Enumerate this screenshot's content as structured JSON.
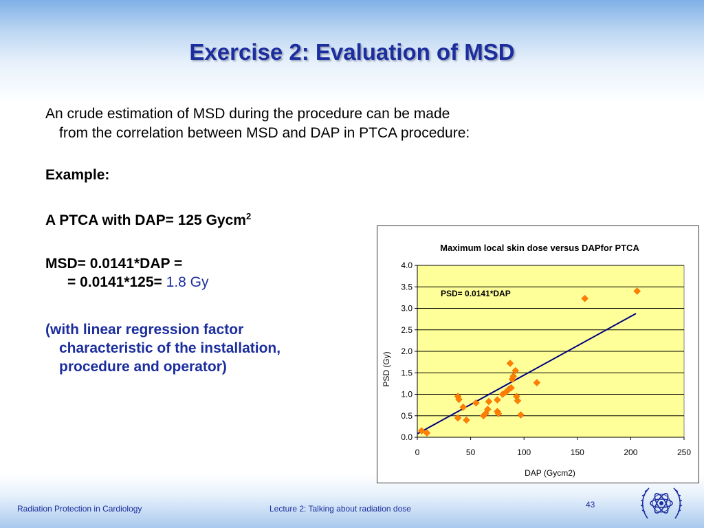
{
  "slide": {
    "title": "Exercise 2: Evaluation of MSD",
    "intro_line1": "An crude estimation of MSD during the procedure can be made",
    "intro_line2": "from the correlation between MSD and DAP in PTCA procedure:",
    "example_label": "Example:",
    "ptca_text": "A PTCA with DAP= 125 Gycm",
    "ptca_sup": "2",
    "msd_line1": "MSD= 0.0141*DAP =",
    "msd_line2_prefix": "= 0.0141*125= ",
    "msd_line2_result": "1.8 Gy",
    "note_line1": "(with linear regression factor",
    "note_line2": "characteristic of the installation,",
    "note_line3": "procedure and operator)"
  },
  "footer": {
    "left": "Radiation Protection in Cardiology",
    "middle": "Lecture 2: Talking about radiation dose",
    "page_number": "43",
    "logo_icon": "iaea-logo-icon"
  },
  "colors": {
    "title_blue": "#1c2e9e",
    "plot_background": "#ffff99",
    "marker": "#ff8000",
    "trendline": "#000080"
  },
  "chart_data": {
    "type": "scatter",
    "title": "Maximum local skin dose versus DAPfor PTCA",
    "xlabel": "DAP (Gycm2)",
    "ylabel": "PSD (Gy)",
    "xlim": [
      0,
      250
    ],
    "ylim": [
      0,
      4
    ],
    "x_ticks": [
      "0",
      "50",
      "100",
      "150",
      "200",
      "250"
    ],
    "y_ticks": [
      "0.0",
      "0.5",
      "1.0",
      "1.5",
      "2.0",
      "2.5",
      "3.0",
      "3.5",
      "4.0"
    ],
    "grid": "horizontal",
    "annotation": "PSD= 0.0141*DAP",
    "points": [
      [
        4,
        0.15
      ],
      [
        9,
        0.1
      ],
      [
        38,
        0.45
      ],
      [
        38,
        0.95
      ],
      [
        39,
        0.88
      ],
      [
        43,
        0.7
      ],
      [
        46,
        0.4
      ],
      [
        55,
        0.8
      ],
      [
        62,
        0.5
      ],
      [
        64,
        0.55
      ],
      [
        66,
        0.65
      ],
      [
        67,
        0.83
      ],
      [
        75,
        0.6
      ],
      [
        75,
        0.87
      ],
      [
        76,
        0.55
      ],
      [
        80,
        1.0
      ],
      [
        83,
        1.05
      ],
      [
        86,
        1.12
      ],
      [
        87,
        1.72
      ],
      [
        88,
        1.15
      ],
      [
        89,
        1.35
      ],
      [
        90,
        1.42
      ],
      [
        92,
        1.55
      ],
      [
        93,
        0.95
      ],
      [
        94,
        0.85
      ],
      [
        97,
        0.52
      ],
      [
        112,
        1.27
      ],
      [
        157,
        3.23
      ],
      [
        206,
        3.4
      ]
    ],
    "trendline": [
      [
        0,
        0.08
      ],
      [
        205,
        2.88
      ]
    ]
  }
}
